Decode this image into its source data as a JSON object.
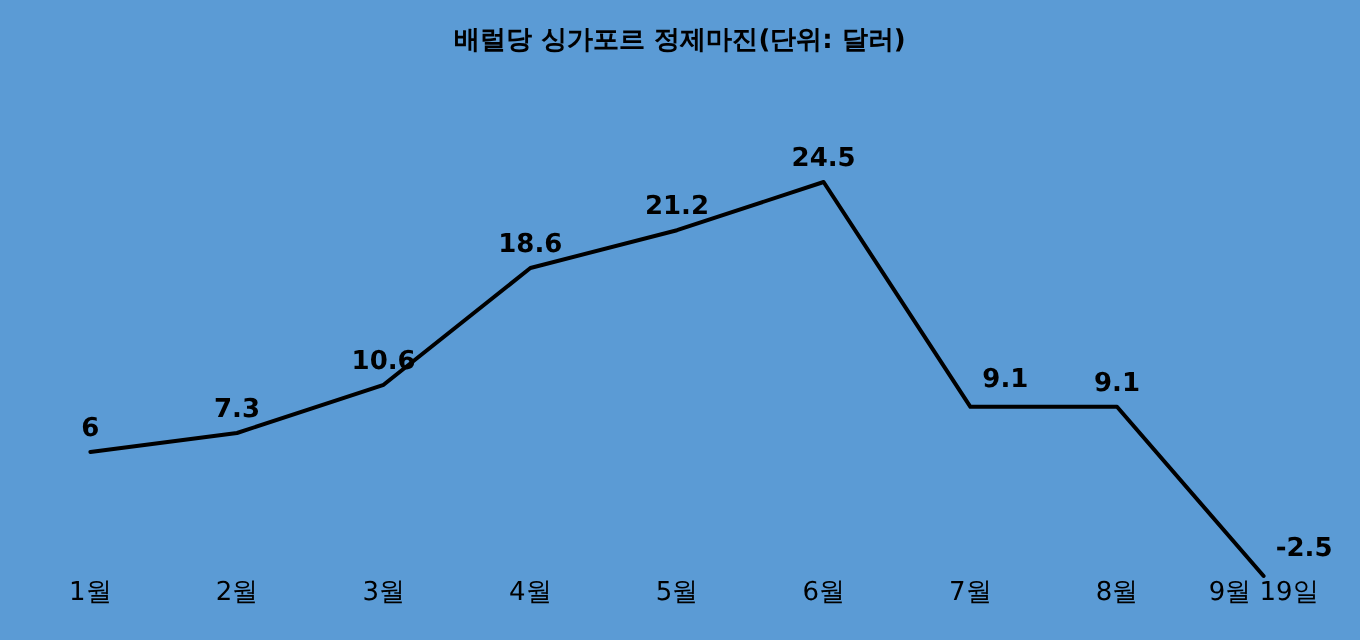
{
  "chart_data": {
    "type": "line",
    "title": "배럴당 싱가포르 정제마진(단위: 달러)",
    "categories": [
      "1월",
      "2월",
      "3월",
      "4월",
      "5월",
      "6월",
      "7월",
      "8월",
      "9월 19일"
    ],
    "series": [
      {
        "color": "#000000",
        "values": [
          6,
          7.3,
          10.6,
          18.6,
          21.2,
          24.5,
          9.1,
          9.1,
          -2.5
        ]
      }
    ],
    "data_labels": true,
    "marker": "none",
    "line_style": "solid"
  }
}
